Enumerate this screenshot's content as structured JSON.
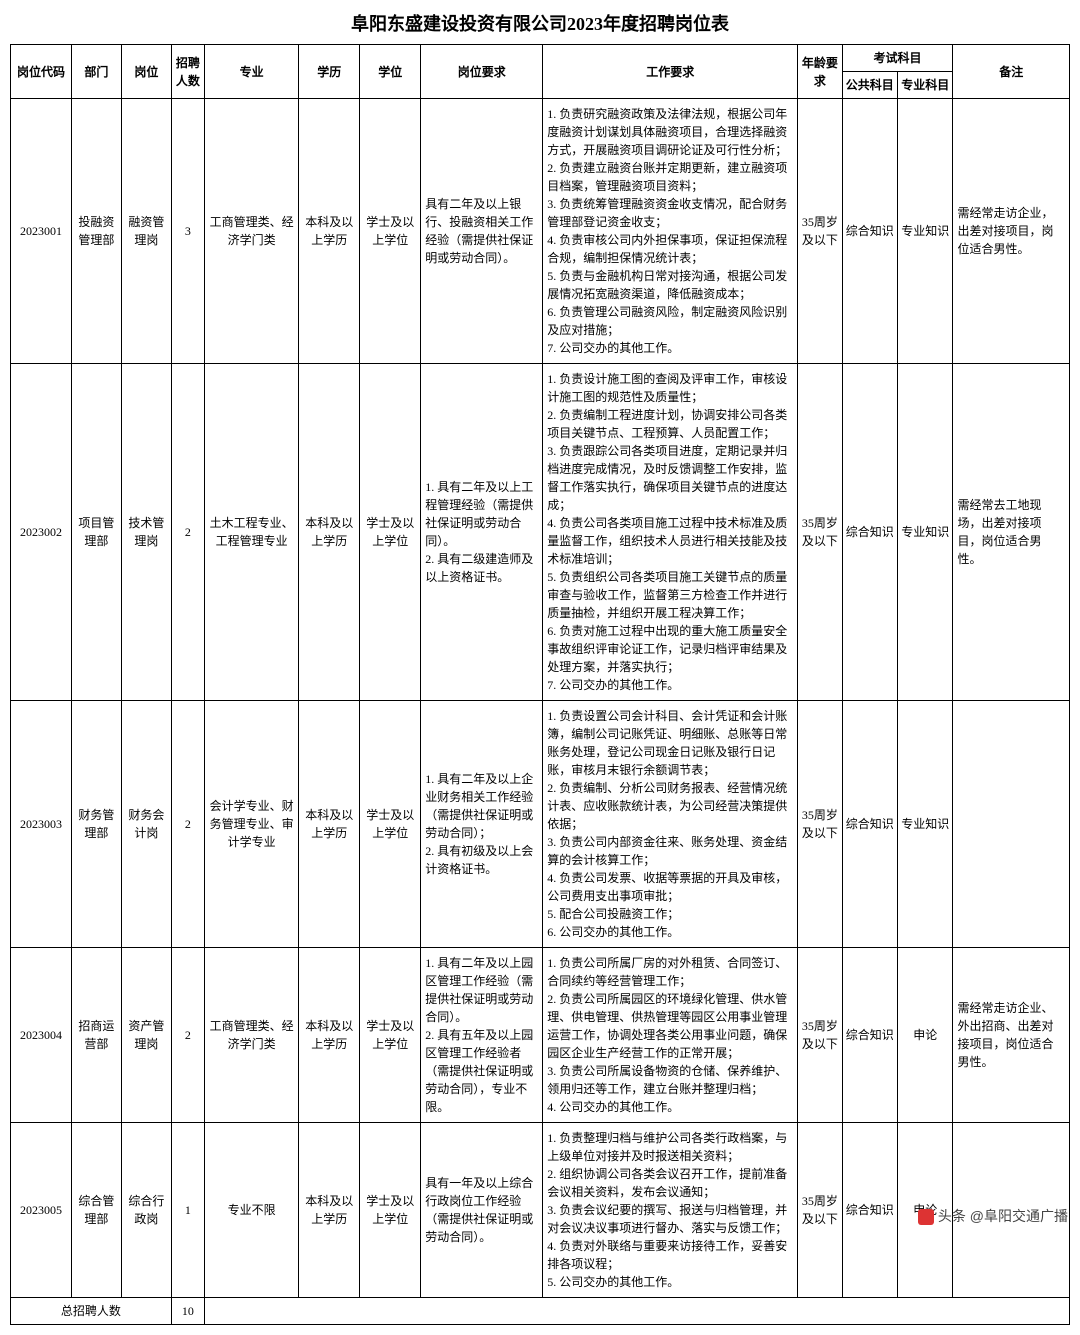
{
  "title": "阜阳东盛建设投资有限公司2023年度招聘岗位表",
  "headers": {
    "code": "岗位代码",
    "dept": "部门",
    "post": "岗位",
    "count": "招聘人数",
    "major": "专业",
    "edu": "学历",
    "degree": "学位",
    "postReq": "岗位要求",
    "workReq": "工作要求",
    "age": "年龄要求",
    "exam": "考试科目",
    "exam1": "公共科目",
    "exam2": "专业科目",
    "remark": "备注"
  },
  "rows": [
    {
      "code": "2023001",
      "dept": "投融资管理部",
      "post": "融资管理岗",
      "count": "3",
      "major": "工商管理类、经济学门类",
      "edu": "本科及以上学历",
      "degree": "学士及以上学位",
      "postReq": "具有二年及以上银行、投融资相关工作经验（需提供社保证明或劳动合同）。",
      "workReq": "1. 负责研究融资政策及法律法规，根据公司年度融资计划谋划具体融资项目，合理选择融资方式，开展融资项目调研论证及可行性分析；\n2. 负责建立融资台账并定期更新，建立融资项目档案，管理融资项目资料；\n3. 负责统筹管理融资资金收支情况，配合财务管理部登记资金收支；\n4. 负责审核公司内外担保事项，保证担保流程合规，编制担保情况统计表；\n5. 负责与金融机构日常对接沟通，根据公司发展情况拓宽融资渠道，降低融资成本；\n6. 负责管理公司融资风险，制定融资风险识别及应对措施；\n7. 公司交办的其他工作。",
      "age": "35周岁及以下",
      "exam1": "综合知识",
      "exam2": "专业知识",
      "remark": "需经常走访企业，出差对接项目，岗位适合男性。"
    },
    {
      "code": "2023002",
      "dept": "项目管理部",
      "post": "技术管理岗",
      "count": "2",
      "major": "土木工程专业、工程管理专业",
      "edu": "本科及以上学历",
      "degree": "学士及以上学位",
      "postReq": "1. 具有二年及以上工程管理经验（需提供社保证明或劳动合同）。\n2. 具有二级建造师及以上资格证书。",
      "workReq": "1. 负责设计施工图的查阅及评审工作，审核设计施工图的规范性及质量性；\n2. 负责编制工程进度计划，协调安排公司各类项目关键节点、工程预算、人员配置工作；\n3. 负责跟踪公司各类项目进度，定期记录并归档进度完成情况，及时反馈调整工作安排，监督工作落实执行，确保项目关键节点的进度达成；\n4. 负责公司各类项目施工过程中技术标准及质量监督工作，组织技术人员进行相关技能及技术标准培训；\n5. 负责组织公司各类项目施工关键节点的质量审查与验收工作，监督第三方检查工作并进行质量抽检，并组织开展工程决算工作；\n6. 负责对施工过程中出现的重大施工质量安全事故组织评审论证工作，记录归档评审结果及处理方案，并落实执行；\n7. 公司交办的其他工作。",
      "age": "35周岁及以下",
      "exam1": "综合知识",
      "exam2": "专业知识",
      "remark": "需经常去工地现场，出差对接项目，岗位适合男性。"
    },
    {
      "code": "2023003",
      "dept": "财务管理部",
      "post": "财务会计岗",
      "count": "2",
      "major": "会计学专业、财务管理专业、审计学专业",
      "edu": "本科及以上学历",
      "degree": "学士及以上学位",
      "postReq": "1. 具有二年及以上企业财务相关工作经验（需提供社保证明或劳动合同）；\n2. 具有初级及以上会计资格证书。",
      "workReq": "1. 负责设置公司会计科目、会计凭证和会计账簿，编制公司记账凭证、明细账、总账等日常账务处理，登记公司现金日记账及银行日记账，审核月末银行余额调节表；\n2. 负责编制、分析公司财务报表、经营情况统计表、应收账款统计表，为公司经营决策提供依据；\n3. 负责公司内部资金往来、账务处理、资金结算的会计核算工作；\n4. 负责公司发票、收据等票据的开具及审核，公司费用支出事项审批；\n5. 配合公司投融资工作；\n6. 公司交办的其他工作。",
      "age": "35周岁及以下",
      "exam1": "综合知识",
      "exam2": "专业知识",
      "remark": ""
    },
    {
      "code": "2023004",
      "dept": "招商运营部",
      "post": "资产管理岗",
      "count": "2",
      "major": "工商管理类、经济学门类",
      "edu": "本科及以上学历",
      "degree": "学士及以上学位",
      "postReq": "1. 具有二年及以上园区管理工作经验（需提供社保证明或劳动合同）。\n2. 具有五年及以上园区管理工作经验者（需提供社保证明或劳动合同），专业不限。",
      "workReq": "1. 负责公司所属厂房的对外租赁、合同签订、合同续约等经营管理工作；\n2. 负责公司所属园区的环境绿化管理、供水管理、供电管理、供热管理等园区公用事业管理运营工作，协调处理各类公用事业问题，确保园区企业生产经营工作的正常开展；\n3. 负责公司所属设备物资的仓储、保养维护、领用归还等工作，建立台账并整理归档；\n4. 公司交办的其他工作。",
      "age": "35周岁及以下",
      "exam1": "综合知识",
      "exam2": "申论",
      "remark": "需经常走访企业、外出招商、出差对接项目，岗位适合男性。"
    },
    {
      "code": "2023005",
      "dept": "综合管理部",
      "post": "综合行政岗",
      "count": "1",
      "major": "专业不限",
      "edu": "本科及以上学历",
      "degree": "学士及以上学位",
      "postReq": "具有一年及以上综合行政岗位工作经验（需提供社保证明或劳动合同）。",
      "workReq": "1. 负责整理归档与维护公司各类行政档案，与上级单位对接并及时报送相关资料；\n2. 组织协调公司各类会议召开工作，提前准备会议相关资料，发布会议通知；\n3. 负责会议纪要的撰写、报送与归档管理，并对会议决议事项进行督办、落实与反馈工作；\n4. 负责对外联络与重要来访接待工作，妥善安排各项议程；\n5. 公司交办的其他工作。",
      "age": "35周岁及以下",
      "exam1": "综合知识",
      "exam2": "申论",
      "remark": ""
    }
  ],
  "footer": {
    "label": "总招聘人数",
    "total": "10"
  },
  "watermark": "头条 @阜阳交通广播",
  "style": {
    "colWidths": [
      "55",
      "45",
      "45",
      "30",
      "85",
      "55",
      "55",
      "110",
      "230",
      "40",
      "50",
      "50",
      "105"
    ],
    "borderColor": "#000000",
    "background": "#ffffff",
    "titleFontSize": 18,
    "cellFontSize": 12
  }
}
